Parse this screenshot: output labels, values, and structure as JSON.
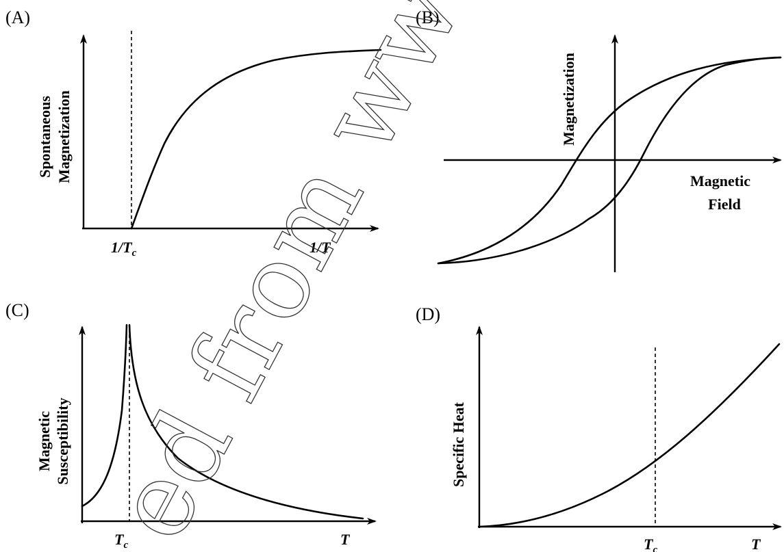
{
  "panels": {
    "A": {
      "label": "(A)",
      "ylabel_line1": "Spontaneous",
      "ylabel_line2": "Magnetization",
      "xtick_tc": "1/T",
      "xtick_tc_sub": "c",
      "xlabel": "1/T"
    },
    "B": {
      "label": "(B)",
      "ylabel": "Magnetization",
      "xlabel_line1": "Magnetic",
      "xlabel_line2": "Field"
    },
    "C": {
      "label": "(C)",
      "ylabel_line1": "Magnetic",
      "ylabel_line2": "Susceptibility",
      "xtick_tc": "T",
      "xtick_tc_sub": "c",
      "xlabel": "T"
    },
    "D": {
      "label": "(D)",
      "ylabel": "Specific Heat",
      "xtick_tc": "T",
      "xtick_tc_sub": "c",
      "xlabel": "T"
    }
  },
  "watermark": "ed from www.tutor",
  "chart_data": [
    {
      "panel": "A",
      "type": "line",
      "xlabel": "1/T",
      "ylabel": "Spontaneous Magnetization",
      "x_ticks": [
        "1/Tc",
        "1/T"
      ],
      "tc_marker": "dashed vertical line at 1/Tc",
      "series": [
        {
          "x": [
            0.0,
            0.05,
            0.1,
            0.2,
            0.3,
            0.5,
            0.7,
            1.0
          ],
          "y": [
            0.0,
            0.3,
            0.5,
            0.72,
            0.84,
            0.94,
            0.98,
            1.0
          ]
        }
      ]
    },
    {
      "panel": "B",
      "type": "line",
      "xlabel": "Magnetic Field",
      "ylabel": "Magnetization",
      "note": "hysteresis loop",
      "series": [
        {
          "x": [
            -1.0,
            -0.6,
            -0.3,
            0.0,
            0.3,
            0.6,
            1.0
          ],
          "y": [
            -1.0,
            -0.8,
            -0.3,
            0.4,
            0.8,
            0.95,
            1.0
          ]
        },
        {
          "x": [
            -1.0,
            -0.6,
            -0.3,
            0.0,
            0.3,
            0.6,
            1.0
          ],
          "y": [
            -1.0,
            -0.95,
            -0.8,
            -0.4,
            0.3,
            0.8,
            1.0
          ]
        }
      ]
    },
    {
      "panel": "C",
      "type": "line",
      "xlabel": "T",
      "ylabel": "Magnetic Susceptibility",
      "x_ticks": [
        "Tc",
        "T"
      ],
      "tc_marker": "dashed vertical line at Tc",
      "series": [
        {
          "x": [
            0.0,
            0.5,
            0.8,
            1.0,
            1.2,
            1.5,
            2.5,
            4.0,
            6.0
          ],
          "y": [
            0.05,
            0.13,
            0.32,
            1.0,
            0.62,
            0.42,
            0.24,
            0.12,
            0.03
          ]
        }
      ]
    },
    {
      "panel": "D",
      "type": "line",
      "xlabel": "T",
      "ylabel": "Specific Heat",
      "x_ticks": [
        "Tc",
        "T"
      ],
      "tc_marker": "dashed vertical line at Tc",
      "series": [
        {
          "x": [
            0.0,
            0.5,
            1.0,
            1.5,
            2.0
          ],
          "y": [
            0.0,
            0.09,
            0.32,
            0.6,
            1.0
          ]
        }
      ]
    }
  ]
}
